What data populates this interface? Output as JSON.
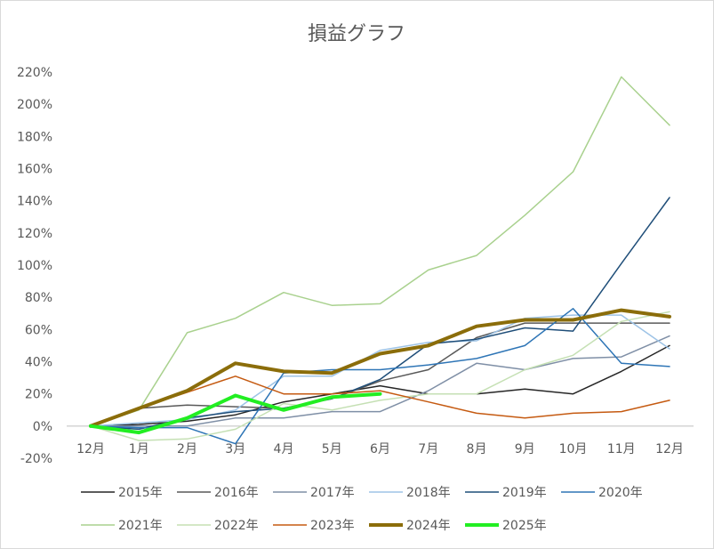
{
  "chart_data": {
    "type": "line",
    "title": "損益グラフ",
    "categories": [
      "12月",
      "1月",
      "2月",
      "3月",
      "4月",
      "5月",
      "6月",
      "7月",
      "8月",
      "9月",
      "10月",
      "11月",
      "12月"
    ],
    "y_tick_labels": [
      "-20%",
      "0%",
      "20%",
      "40%",
      "60%",
      "80%",
      "100%",
      "120%",
      "140%",
      "160%",
      "180%",
      "200%",
      "220%"
    ],
    "ylim": [
      -20,
      220
    ],
    "y_unit": "%",
    "grid": false,
    "legend_position": "bottom",
    "series": [
      {
        "name": "2015年",
        "color": "#262626",
        "width": 1.5,
        "values": [
          0,
          1,
          3,
          7,
          15,
          20,
          25,
          20,
          20,
          23,
          20,
          34,
          50
        ]
      },
      {
        "name": "2016年",
        "color": "#595959",
        "width": 1.5,
        "values": [
          0,
          11,
          13,
          12,
          11,
          17,
          28,
          35,
          55,
          64,
          64,
          64,
          64
        ]
      },
      {
        "name": "2017年",
        "color": "#7f8fa6",
        "width": 1.5,
        "values": [
          0,
          0,
          0,
          5,
          5,
          9,
          9,
          22,
          39,
          35,
          42,
          43,
          56
        ]
      },
      {
        "name": "2018年",
        "color": "#9dc3e6",
        "width": 1.5,
        "values": [
          0,
          2,
          4,
          10,
          31,
          31,
          47,
          52,
          53,
          67,
          69,
          69,
          48
        ]
      },
      {
        "name": "2019年",
        "color": "#1f4e79",
        "width": 1.5,
        "values": [
          0,
          -2,
          5,
          9,
          11,
          17,
          29,
          51,
          54,
          61,
          59,
          101,
          142
        ]
      },
      {
        "name": "2020年",
        "color": "#2e75b6",
        "width": 1.5,
        "values": [
          0,
          -1,
          -1,
          -11,
          33,
          35,
          35,
          38,
          42,
          50,
          73,
          39,
          37
        ]
      },
      {
        "name": "2021年",
        "color": "#a9d18e",
        "width": 1.5,
        "values": [
          0,
          10,
          58,
          67,
          83,
          75,
          76,
          97,
          106,
          131,
          158,
          217,
          187
        ]
      },
      {
        "name": "2022年",
        "color": "#c5e0b4",
        "width": 1.5,
        "values": [
          0,
          -9,
          -8,
          -2,
          14,
          10,
          16,
          20,
          20,
          35,
          44,
          65,
          71
        ]
      },
      {
        "name": "2023年",
        "color": "#c55a11",
        "width": 1.5,
        "values": [
          0,
          11,
          21,
          31,
          20,
          20,
          22,
          15,
          8,
          5,
          8,
          9,
          16
        ]
      },
      {
        "name": "2024年",
        "color": "#8b6d0a",
        "width": 4,
        "values": [
          0,
          11,
          22,
          39,
          34,
          33,
          45,
          50,
          62,
          66,
          66,
          72,
          68
        ]
      },
      {
        "name": "2025年",
        "color": "#22ee22",
        "width": 4,
        "values": [
          0,
          -4,
          5,
          19,
          10,
          18,
          20,
          null,
          null,
          null,
          null,
          null,
          null
        ]
      }
    ]
  }
}
